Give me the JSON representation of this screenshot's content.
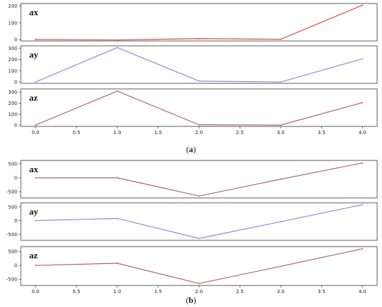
{
  "figure": {
    "panels": [
      {
        "caption_letter": "a",
        "caption_open": "(",
        "caption_close": ")"
      },
      {
        "caption_letter": "b",
        "caption_open": "(",
        "caption_close": ")"
      }
    ]
  },
  "chart_data": [
    {
      "type": "line",
      "panel": "a",
      "label": "ax",
      "color": "#d9474a",
      "x": [
        0,
        1,
        2,
        3,
        4
      ],
      "y": [
        1,
        -2,
        6,
        2,
        205
      ],
      "ylim": [
        -8,
        215
      ],
      "yticks": [
        0,
        100,
        200
      ],
      "show_xticks": false,
      "grid": false
    },
    {
      "type": "line",
      "panel": "a",
      "label": "ay",
      "color": "#a47fd1",
      "x": [
        0,
        1,
        2,
        3,
        4
      ],
      "y": [
        0,
        305,
        8,
        0,
        205
      ],
      "ylim": [
        -12,
        320
      ],
      "yticks": [
        0,
        100,
        200,
        300
      ],
      "show_xticks": false,
      "grid": false
    },
    {
      "type": "line",
      "panel": "a",
      "label": "az",
      "color": "#a8685e",
      "x": [
        0,
        1,
        2,
        3,
        4
      ],
      "y": [
        0,
        310,
        3,
        0,
        205
      ],
      "ylim": [
        -12,
        330
      ],
      "yticks": [
        0,
        100,
        200,
        300
      ],
      "show_xticks": true,
      "xlim": [
        -0.18,
        4.18
      ],
      "xticks": [
        "0.0",
        "0.5",
        "1.0",
        "1.5",
        "2.0",
        "2.5",
        "3.0",
        "3.5",
        "4.0"
      ],
      "grid": false
    },
    {
      "type": "line",
      "panel": "b",
      "label": "ax",
      "color": "#a8685e",
      "x": [
        0,
        1,
        2,
        3,
        4
      ],
      "y": [
        0,
        0,
        -650,
        -50,
        530
      ],
      "ylim": [
        -720,
        620
      ],
      "yticks": [
        -500,
        0,
        500
      ],
      "show_xticks": false,
      "grid": false
    },
    {
      "type": "line",
      "panel": "b",
      "label": "ay",
      "color": "#a47fd1",
      "x": [
        0,
        1,
        2,
        3,
        4
      ],
      "y": [
        0,
        80,
        -650,
        -40,
        580
      ],
      "ylim": [
        -720,
        650
      ],
      "yticks": [
        -500,
        0,
        500
      ],
      "show_xticks": false,
      "grid": false
    },
    {
      "type": "line",
      "panel": "b",
      "label": "az",
      "color": "#a8685e",
      "x": [
        0,
        1,
        2,
        3,
        4
      ],
      "y": [
        0,
        80,
        -650,
        -30,
        600
      ],
      "ylim": [
        -720,
        680
      ],
      "yticks": [
        -500,
        0,
        500
      ],
      "show_xticks": true,
      "xlim": [
        -0.18,
        4.18
      ],
      "xticks": [
        "0.0",
        "0.5",
        "1.0",
        "1.5",
        "2.0",
        "2.5",
        "3.0",
        "3.5",
        "4.0"
      ],
      "grid": false
    }
  ]
}
